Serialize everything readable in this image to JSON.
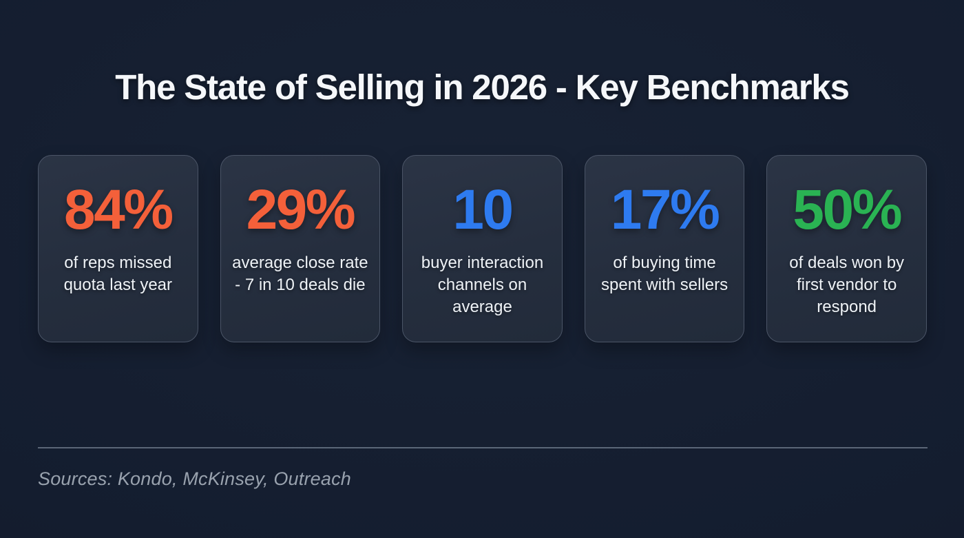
{
  "title": "The State of Selling in 2026 - Key Benchmarks",
  "cards": [
    {
      "value": "84%",
      "label": "of reps missed quota last year",
      "color": "#f4603a"
    },
    {
      "value": "29%",
      "label": "average close rate - 7 in 10 deals die",
      "color": "#f4603a"
    },
    {
      "value": "10",
      "label": "buyer interaction channels on average",
      "color": "#2e7bf0"
    },
    {
      "value": "17%",
      "label": "of buying time spent with sellers",
      "color": "#2e7bf0"
    },
    {
      "value": "50%",
      "label": "of deals won by first vendor to respond",
      "color": "#2ab353"
    }
  ],
  "footer": {
    "sources": "Sources: Kondo, McKinsey, Outreach"
  },
  "colors": {
    "background": "#141d2f",
    "card_background": "#273040",
    "card_border": "#4b5567",
    "accent_orange": "#f4603a",
    "accent_blue": "#2e7bf0",
    "accent_green": "#2ab353",
    "text_primary": "#f2f5f8",
    "text_muted": "#99a2ae"
  },
  "chart_data": {
    "type": "table",
    "title": "The State of Selling in 2026 - Key Benchmarks",
    "categories": [
      "of reps missed quota last year",
      "average close rate - 7 in 10 deals die",
      "buyer interaction channels on average",
      "of buying time spent with sellers",
      "of deals won by first vendor to respond"
    ],
    "values": [
      84,
      29,
      10,
      17,
      50
    ],
    "value_labels": [
      "84%",
      "29%",
      "10",
      "17%",
      "50%"
    ],
    "annotations": [
      "Sources: Kondo, McKinsey, Outreach"
    ],
    "legend_position": "none",
    "grid": false
  }
}
